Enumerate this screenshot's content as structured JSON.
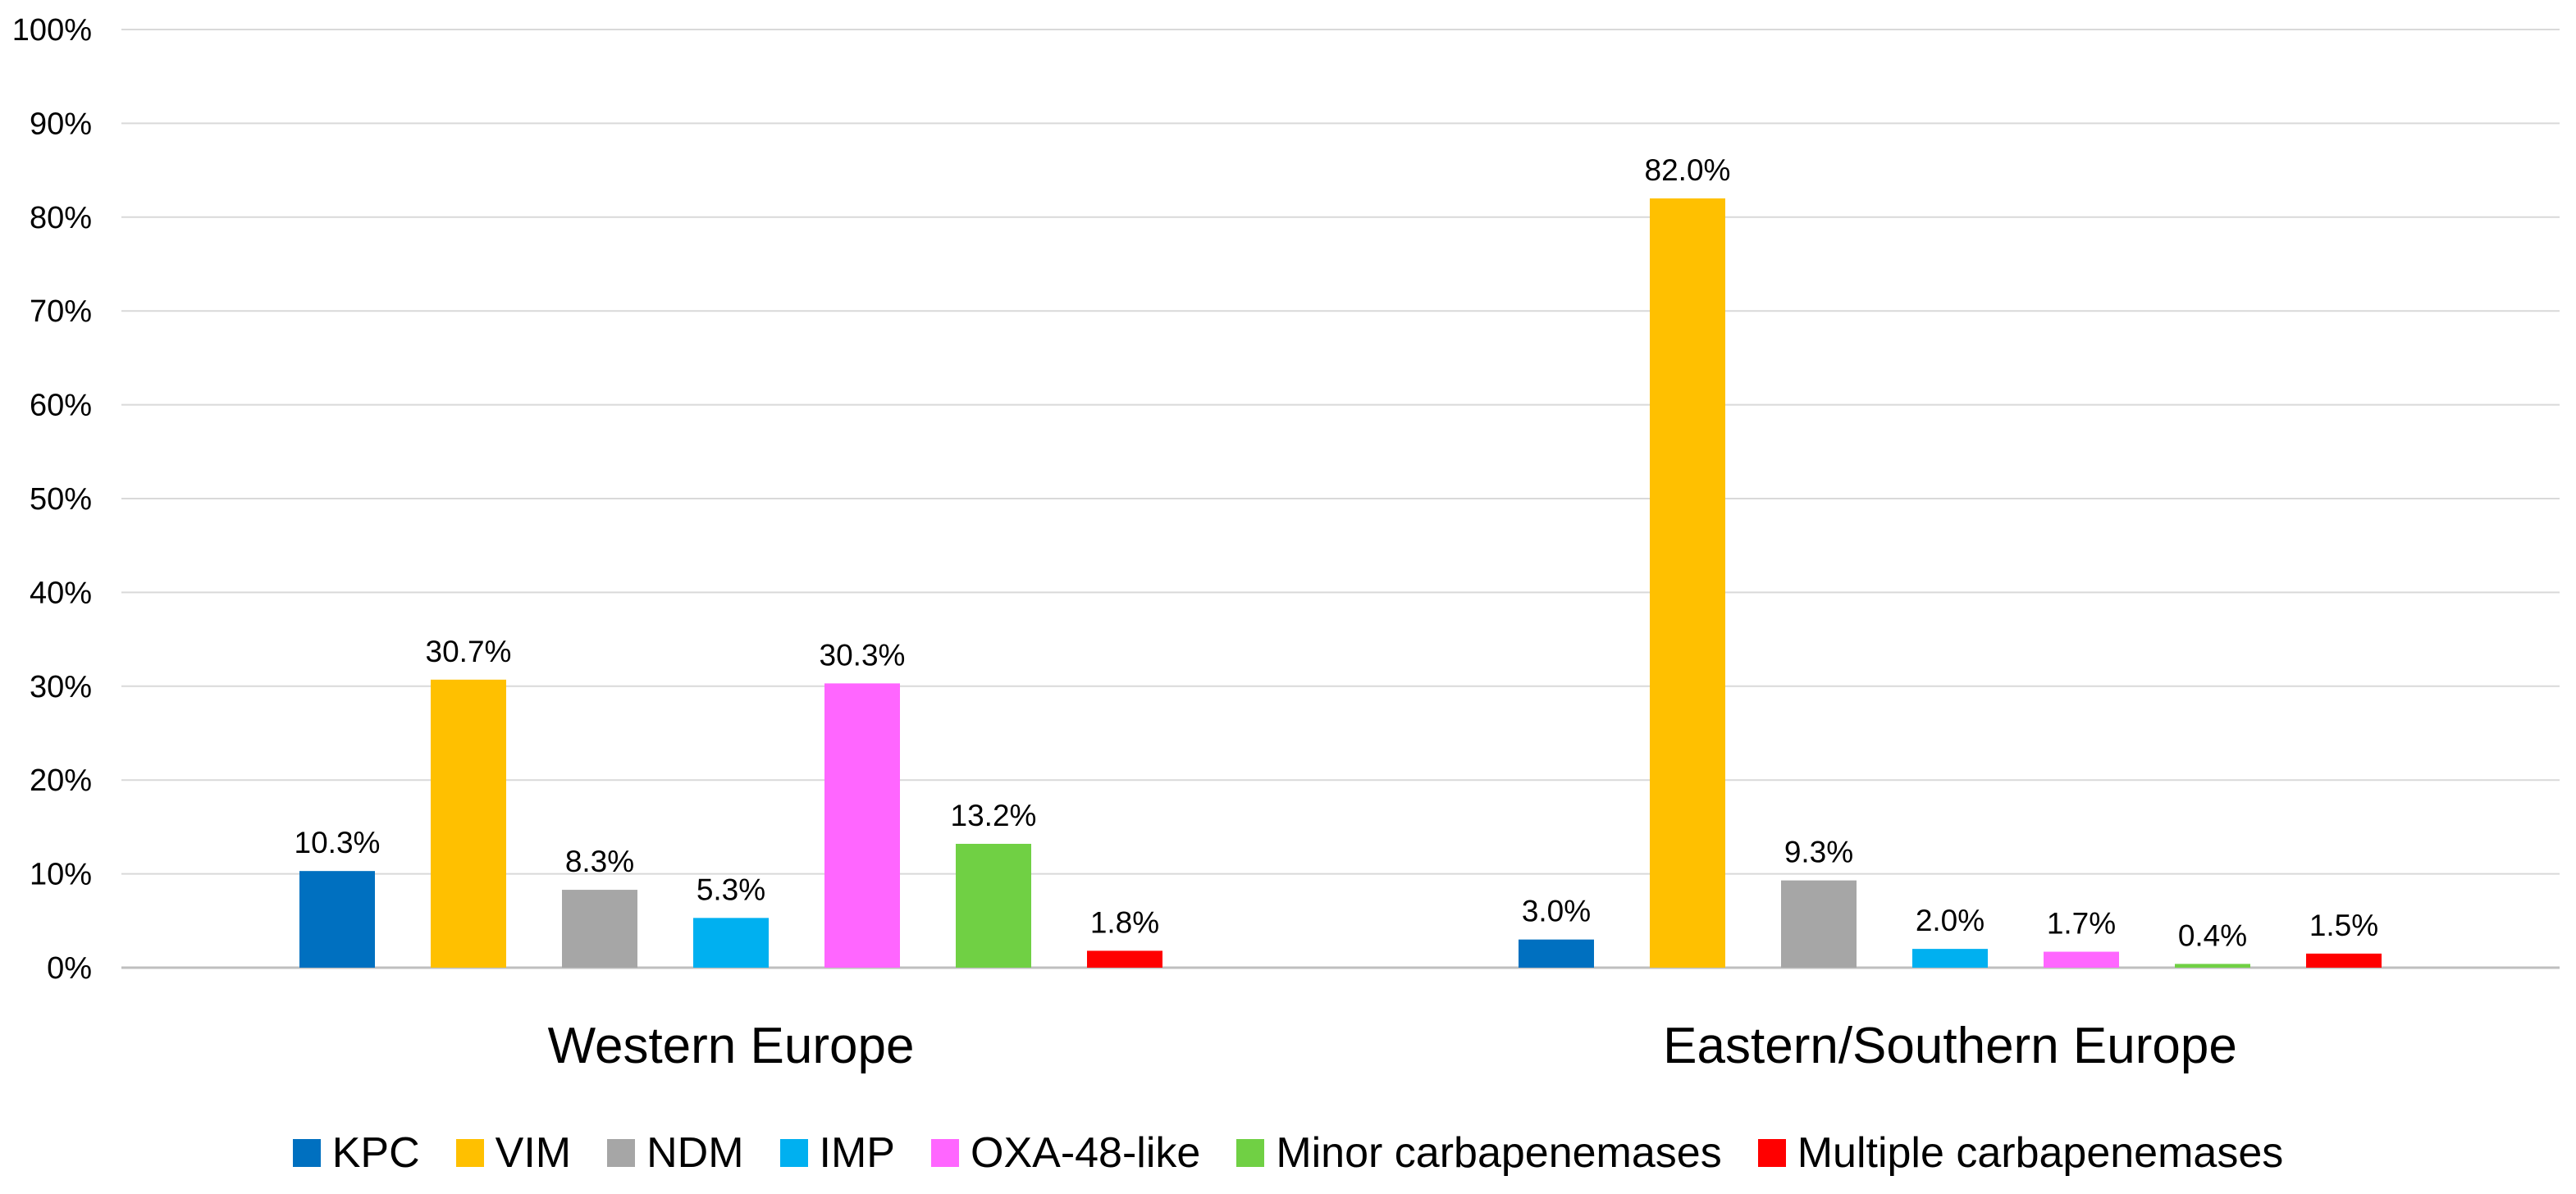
{
  "chart_data": {
    "type": "bar",
    "title": "",
    "xlabel": "",
    "ylabel": "",
    "ylim": [
      0,
      100
    ],
    "y_ticks": [
      "0%",
      "10%",
      "20%",
      "30%",
      "40%",
      "50%",
      "60%",
      "70%",
      "80%",
      "90%",
      "100%"
    ],
    "grid": true,
    "legend_position": "bottom",
    "categories": [
      "Western Europe",
      "Eastern/Southern Europe"
    ],
    "series": [
      {
        "name": "KPC",
        "color": "#0070C0",
        "values": [
          10.3,
          3.0
        ],
        "labels": [
          "10.3%",
          "3.0%"
        ]
      },
      {
        "name": "VIM",
        "color": "#FFC000",
        "values": [
          30.7,
          82.0
        ],
        "labels": [
          "30.7%",
          "82.0%"
        ]
      },
      {
        "name": "NDM",
        "color": "#A6A6A6",
        "values": [
          8.3,
          9.3
        ],
        "labels": [
          "8.3%",
          "9.3%"
        ]
      },
      {
        "name": "IMP",
        "color": "#00B0F0",
        "values": [
          5.3,
          2.0
        ],
        "labels": [
          "5.3%",
          "2.0%"
        ]
      },
      {
        "name": "OXA-48-like",
        "color": "#FF66FF",
        "values": [
          30.3,
          1.7
        ],
        "labels": [
          "30.3%",
          "1.7%"
        ]
      },
      {
        "name": "Minor carbapenemases",
        "color": "#70D044",
        "values": [
          13.2,
          0.4
        ],
        "labels": [
          "13.2%",
          "0.4%"
        ]
      },
      {
        "name": "Multiple carbapenemases",
        "color": "#FF0000",
        "values": [
          1.8,
          1.5
        ],
        "labels": [
          "1.8%",
          "1.5%"
        ]
      }
    ]
  }
}
